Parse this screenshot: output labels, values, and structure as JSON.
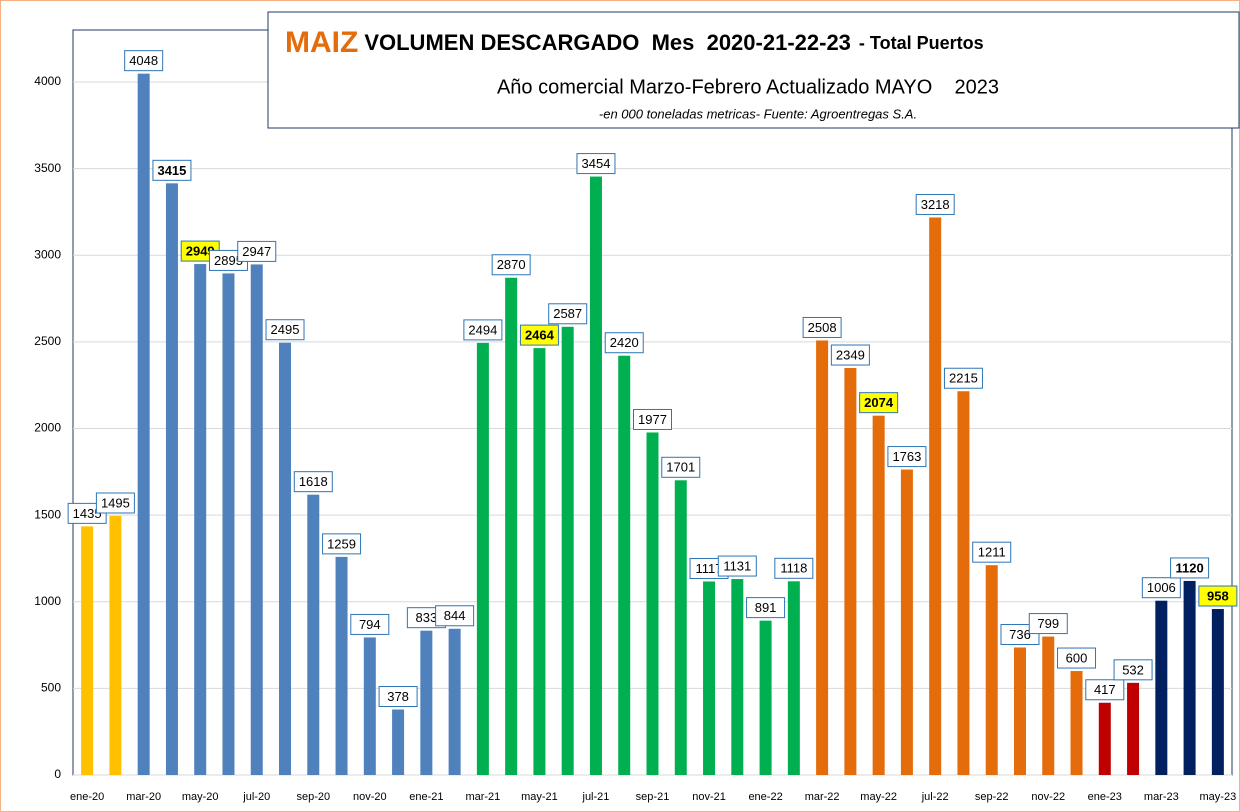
{
  "chart_data": {
    "type": "bar",
    "title": {
      "brand": "MAIZ",
      "main": "VOLUMEN DESCARGADO  Mes  2020-21-22-23",
      "suffix": "- Total Puertos"
    },
    "subtitle": "Año comercial Marzo-Febrero Actualizado MAYO    2023",
    "note": "-en 000 toneladas metricas- Fuente: Agroentregas S.A.",
    "categories": [
      "ene-20",
      null,
      "mar-20",
      null,
      "may-20",
      null,
      "jul-20",
      null,
      "sep-20",
      null,
      "nov-20",
      null,
      "ene-21",
      null,
      "mar-21",
      null,
      "may-21",
      null,
      "jul-21",
      null,
      "sep-21",
      null,
      "nov-21",
      null,
      "ene-22",
      null,
      "mar-22",
      null,
      "may-22",
      null,
      "jul-22",
      null,
      "sep-22",
      null,
      "nov-22",
      null,
      "ene-23",
      null,
      "mar-23",
      null,
      "may-23"
    ],
    "values": [
      1435,
      1495,
      4048,
      3415,
      2949,
      2895,
      2947,
      2495,
      1618,
      1259,
      794,
      378,
      833,
      844,
      2494,
      2870,
      2464,
      2587,
      3454,
      2420,
      1977,
      1701,
      1117,
      1131,
      891,
      1118,
      2508,
      2349,
      2074,
      1763,
      3218,
      2215,
      1211,
      736,
      799,
      600,
      417,
      532,
      1006,
      1120,
      958
    ],
    "colors": [
      "#ffc000",
      "#ffc000",
      "#4f81bd",
      "#4f81bd",
      "#4f81bd",
      "#4f81bd",
      "#4f81bd",
      "#4f81bd",
      "#4f81bd",
      "#4f81bd",
      "#4f81bd",
      "#4f81bd",
      "#4f81bd",
      "#4f81bd",
      "#00b050",
      "#00b050",
      "#00b050",
      "#00b050",
      "#00b050",
      "#00b050",
      "#00b050",
      "#00b050",
      "#00b050",
      "#00b050",
      "#00b050",
      "#00b050",
      "#e46c0a",
      "#e46c0a",
      "#e46c0a",
      "#e46c0a",
      "#e46c0a",
      "#e46c0a",
      "#e46c0a",
      "#e46c0a",
      "#e46c0a",
      "#e46c0a",
      "#c00000",
      "#c00000",
      "#002060",
      "#002060",
      "#002060"
    ],
    "label_styles": [
      "plain",
      "plain",
      "plain",
      "bold",
      "highlight",
      "plain",
      "plain",
      "plain",
      "plain",
      "plain",
      "plain",
      "plain",
      "plain",
      "plain",
      "plain",
      "plain",
      "highlight",
      "plain",
      "plain",
      "plain",
      "plain",
      "plain",
      "plain",
      "plain",
      "plain",
      "plain",
      "plain",
      "plain",
      "highlight",
      "plain",
      "plain",
      "plain",
      "plain",
      "plain",
      "plain",
      "plain",
      "plain",
      "plain",
      "plain",
      "bold",
      "highlight"
    ],
    "ylim": [
      0,
      4300
    ],
    "yticks": [
      0,
      500,
      1000,
      1500,
      2000,
      2500,
      3000,
      3500,
      4000
    ],
    "grid": true
  }
}
